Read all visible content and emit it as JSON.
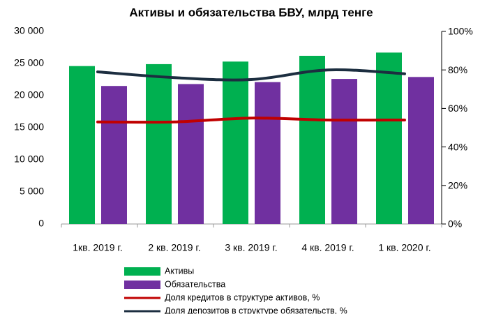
{
  "chart_data": {
    "type": "bar_line",
    "title": "Активы и обязательства БВУ, млрд тенге",
    "categories": [
      "1кв. 2019 г.",
      "2 кв. 2019 г.",
      "3 кв. 2019 г.",
      "4 кв. 2019 г.",
      "1 кв. 2020 г."
    ],
    "series": [
      {
        "name": "Активы",
        "type": "bar",
        "color": "#00b050",
        "values": [
          24600,
          24900,
          25300,
          26200,
          26700
        ]
      },
      {
        "name": "Обязательства",
        "type": "bar",
        "color": "#7030a0",
        "values": [
          21500,
          21800,
          22100,
          22600,
          22900
        ]
      },
      {
        "name": "Доля кредитов в структуре активов, %",
        "type": "line",
        "axis": "y2",
        "color": "#c00000",
        "values": [
          53,
          53,
          55,
          54,
          54
        ]
      },
      {
        "name": "Доля депозитов в структуре обязательств, %",
        "type": "line",
        "axis": "y2",
        "color": "#1c2e40",
        "values": [
          79,
          76,
          75,
          80,
          78
        ]
      }
    ],
    "ylim": [
      0,
      30000
    ],
    "yticks": [
      0,
      {
        "value": 5000,
        "label": "5 000"
      },
      {
        "value": 10000,
        "label": "10 000"
      },
      {
        "value": 15000,
        "label": "15 000"
      },
      {
        "value": 20000,
        "label": "20 000"
      },
      {
        "value": 25000,
        "label": "25 000"
      },
      {
        "value": 30000,
        "label": "30 000"
      }
    ],
    "y2lim": [
      0,
      100
    ],
    "y2ticks": [
      {
        "value": 0,
        "label": "0%"
      },
      {
        "value": 20,
        "label": "20%"
      },
      {
        "value": 40,
        "label": "40%"
      },
      {
        "value": 60,
        "label": "60%"
      },
      {
        "value": 80,
        "label": "80%"
      },
      {
        "value": 100,
        "label": "100%"
      }
    ],
    "legend": "bottom"
  }
}
